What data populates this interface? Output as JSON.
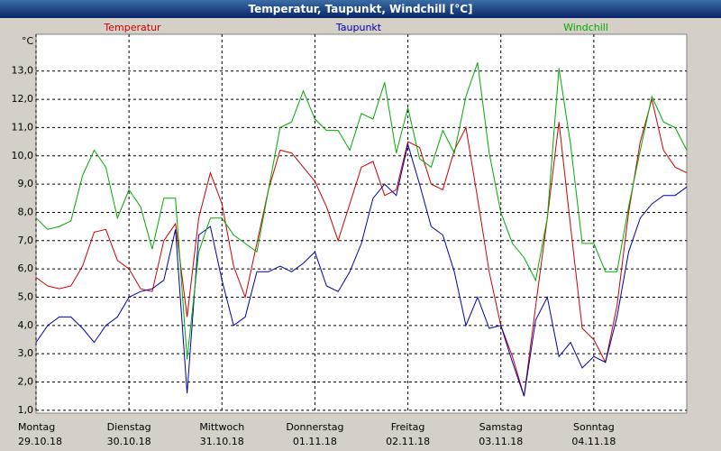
{
  "chart_data": {
    "type": "line",
    "title": "Temperatur, Taupunkt, Windchill [°C]",
    "y_label": "°C",
    "x": [
      0,
      3,
      6,
      9,
      12,
      15,
      18,
      21,
      24,
      27,
      30,
      33,
      36,
      39,
      42,
      45,
      48,
      51,
      54,
      57,
      60,
      63,
      66,
      69,
      72,
      75,
      78,
      81,
      84,
      87,
      90,
      93,
      96,
      99,
      102,
      105,
      108,
      111,
      114,
      117,
      120,
      123,
      126,
      129,
      132,
      135,
      138,
      141,
      144,
      147,
      150,
      153,
      156,
      159,
      162,
      165,
      168
    ],
    "xlim": [
      0,
      168
    ],
    "xticks": [
      {
        "value": 0,
        "label": "Montag"
      },
      {
        "value": 24,
        "label": "Dienstag"
      },
      {
        "value": 48,
        "label": "Mittwoch"
      },
      {
        "value": 72,
        "label": "Donnerstag"
      },
      {
        "value": 96,
        "label": "Freitag"
      },
      {
        "value": 120,
        "label": "Samstag"
      },
      {
        "value": 144,
        "label": "Sonntag"
      }
    ],
    "xtick_dates": [
      "29.10.18",
      "30.10.18",
      "31.10.18",
      "01.11.18",
      "02.11.18",
      "03.11.18",
      "04.11.18"
    ],
    "ylim": [
      0.9,
      14.3
    ],
    "yticks": [
      {
        "value": 1,
        "label": "1,0"
      },
      {
        "value": 2,
        "label": "2,0"
      },
      {
        "value": 3,
        "label": "3,0"
      },
      {
        "value": 4,
        "label": "4,0"
      },
      {
        "value": 5,
        "label": "5,0"
      },
      {
        "value": 6,
        "label": "6,0"
      },
      {
        "value": 7,
        "label": "7,0"
      },
      {
        "value": 8,
        "label": "8,0"
      },
      {
        "value": 9,
        "label": "9,0"
      },
      {
        "value": 10,
        "label": "10,0"
      },
      {
        "value": 11,
        "label": "11,0"
      },
      {
        "value": 12,
        "label": "12,0"
      },
      {
        "value": 13,
        "label": "13,0"
      }
    ],
    "grid": true,
    "series": [
      {
        "name": "Temperatur",
        "color": "#cc0000",
        "values": [
          5.7,
          5.4,
          5.3,
          5.4,
          6.1,
          7.3,
          7.4,
          6.3,
          6.0,
          5.3,
          5.2,
          7.0,
          7.6,
          4.3,
          7.8,
          9.4,
          8.3,
          6.1,
          5.0,
          6.9,
          8.8,
          10.2,
          10.1,
          9.6,
          9.1,
          8.2,
          7.0,
          8.3,
          9.6,
          9.8,
          8.6,
          8.8,
          10.5,
          10.3,
          9.0,
          8.8,
          10.2,
          11.0,
          8.5,
          5.9,
          4.0,
          2.9,
          1.5,
          4.7,
          7.8,
          11.2,
          7.5,
          3.9,
          3.5,
          2.7,
          4.7,
          8.0,
          10.5,
          12.0,
          10.2,
          9.6,
          9.4
        ]
      },
      {
        "name": "Taupunkt",
        "color": "#0000aa",
        "values": [
          3.4,
          4.0,
          4.3,
          4.3,
          3.9,
          3.4,
          4.0,
          4.3,
          5.0,
          5.2,
          5.3,
          5.6,
          7.4,
          1.6,
          7.2,
          7.5,
          5.6,
          4.0,
          4.3,
          5.9,
          5.9,
          6.1,
          5.9,
          6.2,
          6.6,
          5.4,
          5.2,
          5.9,
          6.9,
          8.5,
          9.0,
          8.6,
          10.4,
          9.0,
          7.5,
          7.2,
          5.9,
          4.0,
          5.0,
          3.9,
          4.0,
          2.7,
          1.5,
          4.2,
          5.0,
          2.9,
          3.4,
          2.5,
          2.9,
          2.7,
          4.3,
          6.6,
          7.8,
          8.3,
          8.6,
          8.6,
          8.9
        ]
      },
      {
        "name": "Windchill",
        "color": "#00aa00",
        "values": [
          7.8,
          7.4,
          7.5,
          7.7,
          9.3,
          10.2,
          9.6,
          7.8,
          8.8,
          8.2,
          6.7,
          8.5,
          8.5,
          2.8,
          6.6,
          7.8,
          7.8,
          7.2,
          6.9,
          6.6,
          8.8,
          11.0,
          11.2,
          12.3,
          11.3,
          10.9,
          10.9,
          10.2,
          11.5,
          11.3,
          12.6,
          10.1,
          11.7,
          9.9,
          9.6,
          10.9,
          10.1,
          12.1,
          13.3,
          10.1,
          8.0,
          6.9,
          6.4,
          5.6,
          7.8,
          13.1,
          10.4,
          6.9,
          6.9,
          5.9,
          5.9,
          8.2,
          10.2,
          12.1,
          11.2,
          11.0,
          10.2
        ]
      }
    ]
  }
}
